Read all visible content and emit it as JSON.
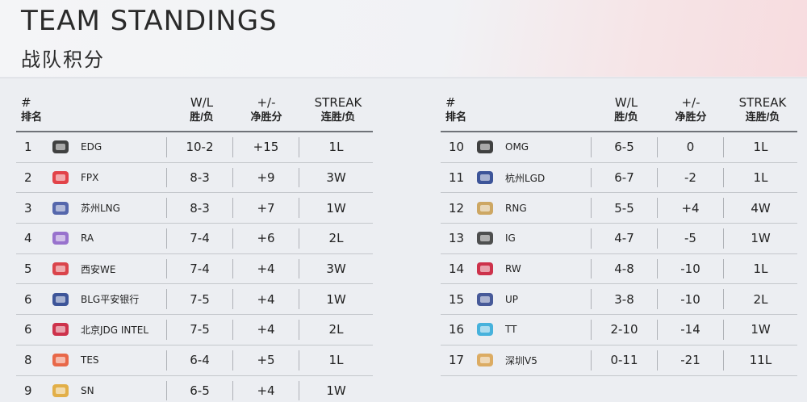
{
  "header": {
    "title": "TEAM STANDINGS",
    "subtitle": "战队积分"
  },
  "columns": {
    "rank_en": "#",
    "rank_zh": "排名",
    "wl_en": "W/L",
    "wl_zh": "胜/负",
    "pm_en": "+/-",
    "pm_zh": "净胜分",
    "streak_en": "STREAK",
    "streak_zh": "连胜/负"
  },
  "left_rows": [
    {
      "rank": "1",
      "team": "EDG",
      "wl": "10-2",
      "pm": "+15",
      "streak": "1L",
      "logo": "edg-logo",
      "color": "#222222"
    },
    {
      "rank": "2",
      "team": "FPX",
      "wl": "8-3",
      "pm": "+9",
      "streak": "3W",
      "logo": "fpx-logo",
      "color": "#e0242c"
    },
    {
      "rank": "3",
      "team": "苏州LNG",
      "wl": "8-3",
      "pm": "+7",
      "streak": "1W",
      "logo": "lng-logo",
      "color": "#3b4fa0"
    },
    {
      "rank": "4",
      "team": "RA",
      "wl": "7-4",
      "pm": "+6",
      "streak": "2L",
      "logo": "ra-logo",
      "color": "#8a5cc7"
    },
    {
      "rank": "5",
      "team": "西安WE",
      "wl": "7-4",
      "pm": "+4",
      "streak": "3W",
      "logo": "we-logo",
      "color": "#d7262e"
    },
    {
      "rank": "6",
      "team": "BLG平安银行",
      "wl": "7-5",
      "pm": "+4",
      "streak": "1W",
      "logo": "blg-logo",
      "color": "#1f3a8a"
    },
    {
      "rank": "6",
      "team": "北京JDG INTEL",
      "wl": "7-5",
      "pm": "+4",
      "streak": "2L",
      "logo": "jdg-logo",
      "color": "#c8102e"
    },
    {
      "rank": "8",
      "team": "TES",
      "wl": "6-4",
      "pm": "+5",
      "streak": "1L",
      "logo": "tes-logo",
      "color": "#e8502c"
    },
    {
      "rank": "9",
      "team": "SN",
      "wl": "6-5",
      "pm": "+4",
      "streak": "1W",
      "logo": "sn-logo",
      "color": "#e0a32a"
    }
  ],
  "right_rows": [
    {
      "rank": "10",
      "team": "OMG",
      "wl": "6-5",
      "pm": "0",
      "streak": "1L",
      "logo": "omg-logo",
      "color": "#222222"
    },
    {
      "rank": "11",
      "team": "杭州LGD",
      "wl": "6-7",
      "pm": "-2",
      "streak": "1L",
      "logo": "lgd-logo",
      "color": "#1f3a8a"
    },
    {
      "rank": "12",
      "team": "RNG",
      "wl": "5-5",
      "pm": "+4",
      "streak": "4W",
      "logo": "rng-logo",
      "color": "#c89a4a"
    },
    {
      "rank": "13",
      "team": "IG",
      "wl": "4-7",
      "pm": "-5",
      "streak": "1W",
      "logo": "ig-logo",
      "color": "#333333"
    },
    {
      "rank": "14",
      "team": "RW",
      "wl": "4-8",
      "pm": "-10",
      "streak": "1L",
      "logo": "rw-logo",
      "color": "#c8102e"
    },
    {
      "rank": "15",
      "team": "UP",
      "wl": "3-8",
      "pm": "-10",
      "streak": "2L",
      "logo": "up-logo",
      "color": "#2a3f8a"
    },
    {
      "rank": "16",
      "team": "TT",
      "wl": "2-10",
      "pm": "-14",
      "streak": "1W",
      "logo": "tt-logo",
      "color": "#2aa7d8"
    },
    {
      "rank": "17",
      "team": "深圳V5",
      "wl": "0-11",
      "pm": "-21",
      "streak": "11L",
      "logo": "v5-logo",
      "color": "#d9a04a"
    }
  ]
}
